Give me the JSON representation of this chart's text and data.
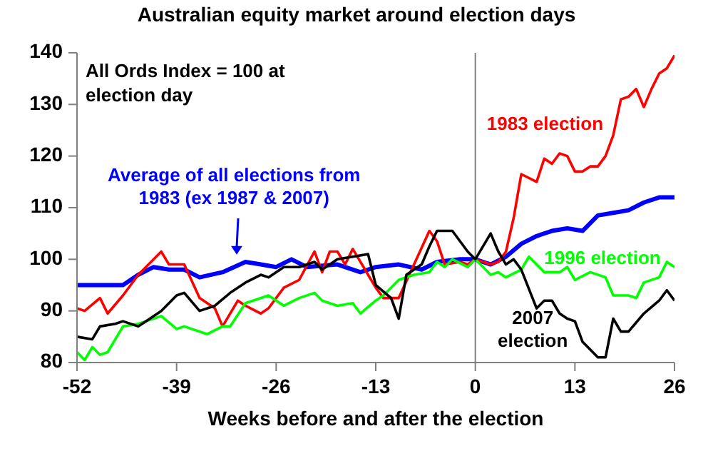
{
  "chart_data": {
    "type": "line",
    "title": "Australian equity market around election days",
    "xlabel": "Weeks before and after the election",
    "xlim": [
      -52,
      26
    ],
    "xticks": [
      -52,
      -39,
      -26,
      -13,
      0,
      13,
      26
    ],
    "ylim": [
      80,
      140
    ],
    "yticks": [
      80,
      90,
      100,
      110,
      120,
      130,
      140
    ],
    "marker": "none",
    "line_style": "solid",
    "ref_lines": [
      {
        "axis": "x",
        "value": 0,
        "color": "#808080"
      }
    ],
    "annotations": [
      "All Ords Index = 100 at election day"
    ],
    "series": [
      {
        "name": "Average of all elections from 1983 (ex 1987 & 2007)",
        "color": "#0000ff",
        "x": [
          -52,
          -49,
          -46,
          -44,
          -42,
          -40,
          -38,
          -36,
          -33,
          -30,
          -28,
          -26,
          -24,
          -22,
          -18,
          -15,
          -13,
          -10,
          -7,
          -5,
          -2,
          0,
          2,
          4,
          6,
          8,
          10,
          12,
          14,
          16,
          18,
          20,
          22,
          24,
          26
        ],
        "values": [
          95,
          95,
          95,
          97,
          98.5,
          98,
          98,
          96.5,
          97.5,
          99.5,
          99,
          98.5,
          100,
          98.5,
          99,
          97.5,
          98.5,
          99,
          98,
          99.5,
          100,
          100,
          99,
          100.5,
          103,
          104.5,
          105.5,
          106,
          105.5,
          108.5,
          109,
          109.5,
          111,
          112,
          112
        ]
      },
      {
        "name": "1983 election",
        "color": "#ff0000",
        "x": [
          -52,
          -51,
          -49,
          -48,
          -46,
          -44,
          -41,
          -40,
          -38,
          -36,
          -34,
          -33,
          -31,
          -30,
          -28,
          -27,
          -25,
          -23,
          -21,
          -20,
          -19,
          -18,
          -17,
          -16,
          -14,
          -13,
          -12,
          -10,
          -8,
          -6,
          -5,
          -4,
          -2,
          -1,
          0,
          2,
          3,
          4,
          5,
          6,
          8,
          9,
          10,
          11,
          12,
          13,
          14,
          15,
          16,
          17,
          18,
          19,
          20,
          21,
          22,
          23,
          24,
          25,
          26
        ],
        "values": [
          90.5,
          90,
          92.5,
          89.5,
          93,
          97,
          101.5,
          99,
          99,
          92.5,
          90.5,
          87,
          92,
          91,
          89.5,
          90.5,
          94.5,
          96,
          101.5,
          97.5,
          101.5,
          101.5,
          99,
          102,
          97,
          94.5,
          92.5,
          92.5,
          99,
          105.5,
          103.5,
          99,
          99.5,
          99,
          100,
          99,
          99.5,
          101.5,
          108,
          116.5,
          115,
          119.5,
          118.5,
          120.5,
          120,
          117,
          117,
          118,
          118,
          120,
          124,
          131,
          131.5,
          133,
          129.5,
          133,
          136,
          137,
          139.5
        ]
      },
      {
        "name": "1996 election",
        "color": "#00ff00",
        "x": [
          -52,
          -51,
          -50,
          -49,
          -48,
          -46,
          -44,
          -43,
          -41,
          -39,
          -38,
          -35,
          -33,
          -32,
          -30,
          -29,
          -27,
          -25,
          -23,
          -21,
          -20,
          -18,
          -16,
          -15,
          -13,
          -12,
          -10,
          -8,
          -6,
          -5,
          -4,
          -3,
          -1,
          0,
          2,
          3,
          4,
          6,
          7,
          9,
          11,
          12,
          13,
          15,
          17,
          18,
          20,
          21,
          22,
          24,
          25,
          26
        ],
        "values": [
          82,
          80.5,
          83,
          81.5,
          82,
          87,
          87.5,
          88,
          89,
          86.5,
          87,
          85.5,
          87,
          87,
          91.5,
          92,
          93,
          91,
          92.5,
          93.5,
          92,
          91,
          91.5,
          89.5,
          92,
          93,
          96,
          97,
          97.5,
          99.5,
          98.5,
          100,
          98.5,
          100,
          97,
          97.5,
          96.5,
          98,
          100.5,
          97.5,
          97.5,
          98.5,
          96,
          97.5,
          96.5,
          93,
          93,
          92.5,
          95.5,
          96.5,
          99.5,
          98.5
        ]
      },
      {
        "name": "2007 election",
        "color": "#000000",
        "x": [
          -52,
          -50,
          -49,
          -47,
          -46,
          -44,
          -43,
          -41,
          -39,
          -38,
          -36,
          -34,
          -32,
          -30,
          -28,
          -27,
          -25,
          -23,
          -21,
          -20,
          -18,
          -16,
          -14,
          -13,
          -11,
          -10,
          -9,
          -7,
          -6,
          -5,
          -3,
          -1,
          0,
          2,
          3,
          4,
          5,
          6,
          8,
          9,
          10,
          11,
          12,
          13,
          14,
          16,
          17,
          18,
          19,
          20,
          22,
          24,
          25,
          26
        ],
        "values": [
          85,
          84.5,
          87,
          87.5,
          88,
          87,
          88,
          90,
          93,
          93.5,
          90,
          91,
          93.5,
          95.5,
          97,
          96.5,
          98.5,
          98.5,
          99.5,
          98,
          100,
          100.5,
          101,
          95,
          92.5,
          88.5,
          97,
          99,
          102.5,
          105.5,
          105.5,
          101.5,
          100,
          105,
          101.5,
          99,
          100,
          98,
          90.5,
          92,
          92,
          89.5,
          88.5,
          88,
          84,
          81,
          81,
          88.5,
          86,
          86,
          89.5,
          92,
          94,
          92
        ]
      }
    ]
  }
}
